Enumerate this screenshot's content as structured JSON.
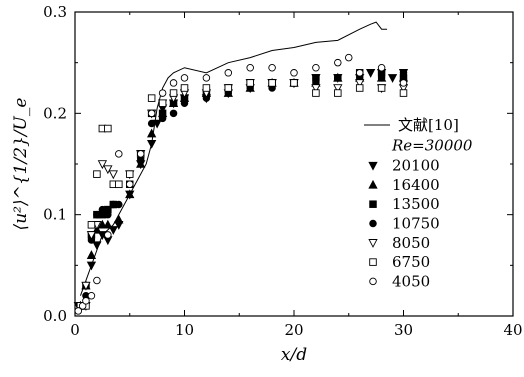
{
  "chart_data": {
    "type": "scatter",
    "xlabel": "x/d",
    "ylabel": "⟨u²⟩^{1/2}/U_e",
    "xlim": [
      0,
      40
    ],
    "ylim": [
      0,
      0.3
    ],
    "xticks": [
      "0",
      "10",
      "20",
      "30",
      "40"
    ],
    "yticks": [
      "0.0",
      "0.1",
      "0.2",
      "0.3"
    ],
    "grid": false,
    "legend_position": "right",
    "legend_title": "Re=30000",
    "series": [
      {
        "name": "文献[10]",
        "kind": "line",
        "x": [
          0.5,
          1.5,
          2.5,
          3.5,
          4.5,
          5.5,
          6.5,
          7,
          7.5,
          8,
          8.5,
          9,
          10,
          12,
          14,
          16,
          18,
          20,
          22,
          24,
          26,
          27,
          27.5,
          28,
          28.5
        ],
        "values": [
          0.02,
          0.05,
          0.08,
          0.09,
          0.11,
          0.13,
          0.15,
          0.17,
          0.205,
          0.225,
          0.235,
          0.24,
          0.245,
          0.24,
          0.25,
          0.255,
          0.262,
          0.265,
          0.27,
          0.272,
          0.283,
          0.288,
          0.29,
          0.283,
          0.283
        ]
      },
      {
        "name": "20100",
        "marker": "triangle-down",
        "x": [
          0.3,
          1,
          1.5,
          2,
          2.5,
          3,
          3.5,
          4,
          5,
          6,
          7,
          7.5,
          8,
          9,
          10,
          12,
          14,
          16,
          18,
          20,
          22,
          24,
          26,
          27,
          28,
          29,
          30
        ],
        "values": [
          0.01,
          0.01,
          0.05,
          0.07,
          0.08,
          0.075,
          0.085,
          0.09,
          0.12,
          0.15,
          0.17,
          0.19,
          0.205,
          0.21,
          0.215,
          0.215,
          0.22,
          0.225,
          0.23,
          0.23,
          0.235,
          0.235,
          0.235,
          0.24,
          0.24,
          0.235,
          0.24
        ]
      },
      {
        "name": "16400",
        "marker": "triangle-up",
        "x": [
          0.5,
          1,
          1.5,
          2,
          2.5,
          3,
          4,
          5,
          6,
          7,
          8,
          9,
          10,
          12,
          14,
          16,
          18,
          20,
          22,
          24,
          26,
          28,
          30
        ],
        "values": [
          0.01,
          0.03,
          0.06,
          0.085,
          0.09,
          0.09,
          0.095,
          0.12,
          0.15,
          0.18,
          0.2,
          0.21,
          0.215,
          0.22,
          0.22,
          0.225,
          0.23,
          0.23,
          0.23,
          0.235,
          0.235,
          0.235,
          0.235
        ]
      },
      {
        "name": "13500",
        "marker": "square-filled",
        "x": [
          0.5,
          1,
          1.5,
          2,
          2.5,
          3,
          3.5,
          4,
          5,
          6,
          7,
          8,
          9,
          10,
          12,
          14,
          16,
          18,
          20,
          22,
          24,
          26,
          28,
          30
        ],
        "values": [
          0.01,
          0.03,
          0.08,
          0.1,
          0.1,
          0.105,
          0.11,
          0.13,
          0.13,
          0.16,
          0.2,
          0.2,
          0.21,
          0.215,
          0.22,
          0.225,
          0.23,
          0.23,
          0.23,
          0.235,
          0.235,
          0.24,
          0.24,
          0.235
        ]
      },
      {
        "name": "10750",
        "marker": "circle-filled",
        "x": [
          0.5,
          1,
          1.5,
          2,
          2.5,
          3,
          3.5,
          4,
          5,
          6,
          7,
          8,
          9,
          10,
          12,
          14,
          16,
          18,
          20,
          22,
          24,
          26,
          28,
          30
        ],
        "values": [
          0.01,
          0.02,
          0.075,
          0.1,
          0.105,
          0.1,
          0.11,
          0.11,
          0.13,
          0.155,
          0.19,
          0.195,
          0.2,
          0.21,
          0.215,
          0.22,
          0.225,
          0.225,
          0.23,
          0.23,
          0.235,
          0.235,
          0.235,
          0.24
        ]
      },
      {
        "name": "8050",
        "marker": "triangle-down-open",
        "x": [
          0.5,
          1,
          1.5,
          2,
          2.5,
          3,
          3.5,
          5,
          6,
          7,
          8,
          9,
          10,
          12,
          14,
          16,
          18,
          20,
          22,
          24,
          26,
          28,
          30
        ],
        "values": [
          0.01,
          0.03,
          0.08,
          0.09,
          0.15,
          0.145,
          0.14,
          0.14,
          0.16,
          0.2,
          0.21,
          0.215,
          0.22,
          0.22,
          0.225,
          0.23,
          0.23,
          0.23,
          0.225,
          0.225,
          0.23,
          0.225,
          0.225
        ]
      },
      {
        "name": "6750",
        "marker": "square-open",
        "x": [
          0.5,
          1,
          1.5,
          2,
          2.5,
          3,
          3.5,
          4,
          5,
          6,
          7,
          8,
          9,
          10,
          12,
          14,
          16,
          18,
          20,
          22,
          24,
          26,
          28,
          30
        ],
        "values": [
          0.01,
          0.01,
          0.09,
          0.14,
          0.185,
          0.185,
          0.13,
          0.13,
          0.14,
          0.16,
          0.215,
          0.21,
          0.22,
          0.225,
          0.225,
          0.225,
          0.23,
          0.23,
          0.23,
          0.22,
          0.22,
          0.225,
          0.225,
          0.22
        ]
      },
      {
        "name": "4050",
        "marker": "circle-open",
        "x": [
          0.3,
          0.7,
          1,
          1.5,
          2,
          3,
          4,
          5,
          6,
          7,
          8,
          9,
          10,
          12,
          14,
          16,
          18,
          20,
          22,
          24,
          25,
          26,
          28,
          30
        ],
        "values": [
          0.005,
          0.01,
          0.015,
          0.02,
          0.035,
          0.08,
          0.16,
          0.13,
          0.16,
          0.2,
          0.22,
          0.23,
          0.235,
          0.235,
          0.24,
          0.245,
          0.245,
          0.24,
          0.245,
          0.25,
          0.255,
          0.24,
          0.245,
          0.23
        ]
      }
    ]
  }
}
